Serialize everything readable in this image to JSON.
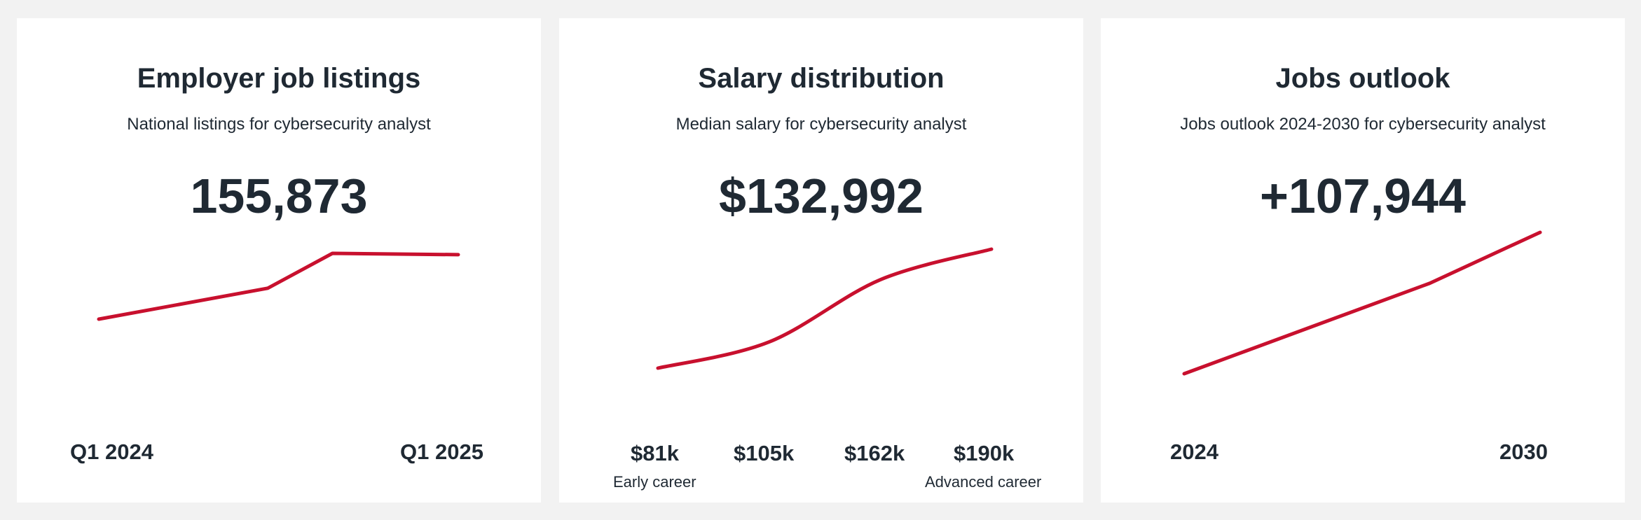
{
  "chart_data": [
    {
      "type": "line",
      "title": "Employer job listings",
      "subtitle": "National listings for cybersecurity analyst",
      "headline": "155,873",
      "x": [
        "Q1 2024",
        "",
        "",
        "Q1 2025"
      ],
      "series": [
        {
          "values": [
            0.0,
            0.47,
            1.0,
            0.98
          ]
        }
      ],
      "x_labels": [
        "Q1 2024",
        "Q1 2025"
      ],
      "line_color": "#c8102e"
    },
    {
      "type": "line",
      "title": "Salary distribution",
      "subtitle": "Median salary for cybersecurity analyst",
      "headline": "$132,992",
      "x": [
        "$81k",
        "$105k",
        "$162k",
        "$190k"
      ],
      "series": [
        {
          "values": [
            81,
            105,
            162,
            190
          ]
        }
      ],
      "x_labels": [
        "$81k",
        "$105k",
        "$162k",
        "$190k"
      ],
      "x_sublabels": [
        "Early career",
        "Advanced career"
      ],
      "line_color": "#c8102e"
    },
    {
      "type": "line",
      "title": "Jobs outlook",
      "subtitle": "Jobs outlook 2024-2030 for cybersecurity analyst",
      "headline": "+107,944",
      "x": [
        "2024",
        "",
        "2030"
      ],
      "series": [
        {
          "values": [
            0.0,
            0.64,
            1.0
          ]
        }
      ],
      "x_labels": [
        "2024",
        "2030"
      ],
      "line_color": "#c8102e"
    }
  ]
}
